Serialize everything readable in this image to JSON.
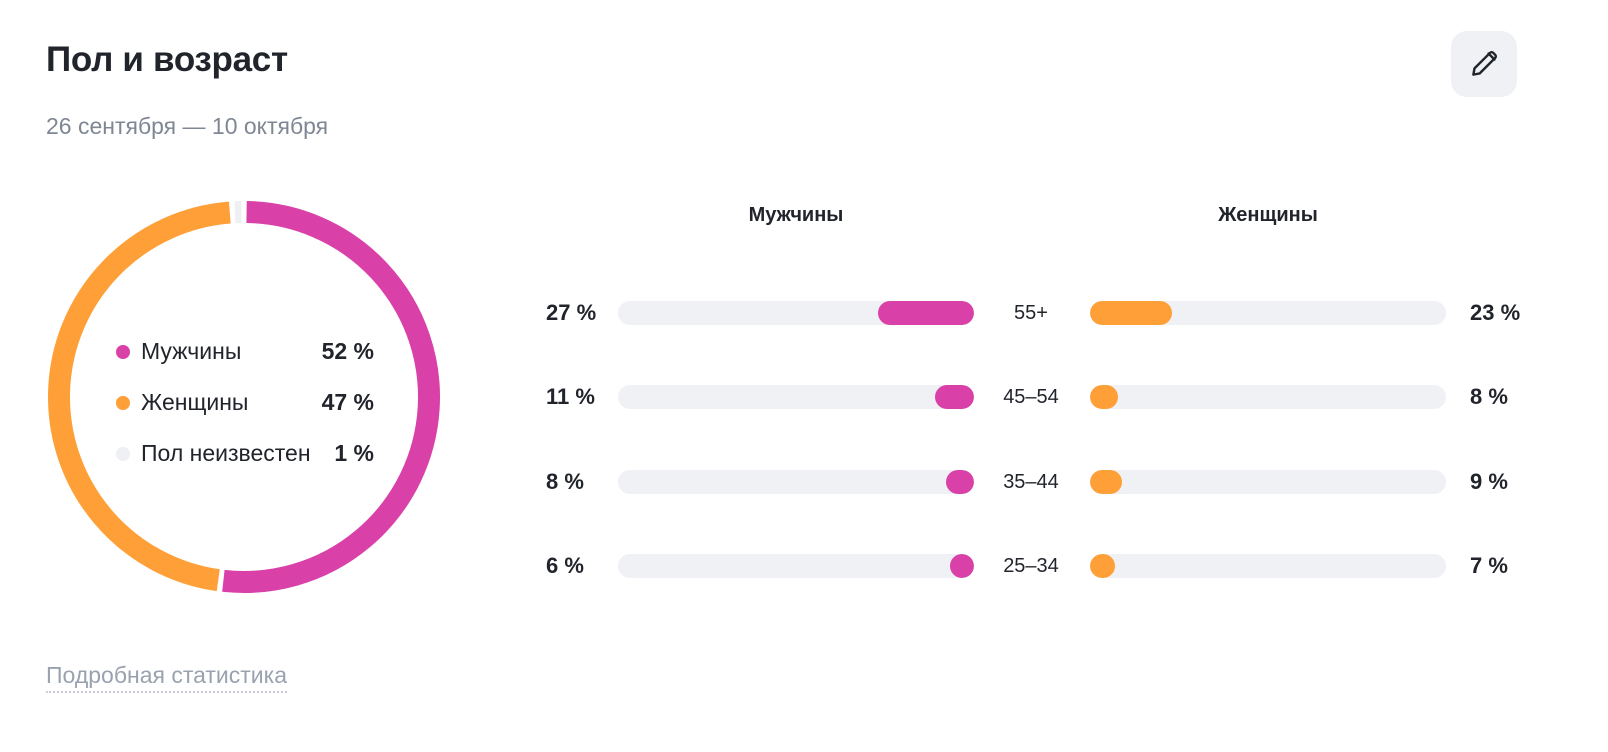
{
  "header": {
    "title": "Пол и возраст",
    "date_range": "26 сентября — 10 октября",
    "edit_icon": "pencil-icon"
  },
  "colors": {
    "male": "#d941a8",
    "female": "#ff9f38",
    "unknown": "#eef0f4",
    "track": "#eff1f4"
  },
  "gender": {
    "items": [
      {
        "key": "male",
        "label": "Мужчины",
        "value_text": "52 %",
        "value": 52
      },
      {
        "key": "female",
        "label": "Женщины",
        "value_text": "47 %",
        "value": 47
      },
      {
        "key": "unknown",
        "label": "Пол неизвестен",
        "value_text": "1 %",
        "value": 1
      }
    ]
  },
  "age": {
    "male_header": "Мужчины",
    "female_header": "Женщины",
    "rows": [
      {
        "range": "55+",
        "male_text": "27 %",
        "male": 27,
        "female_text": "23 %",
        "female": 23
      },
      {
        "range": "45–54",
        "male_text": "11 %",
        "male": 11,
        "female_text": "8 %",
        "female": 8
      },
      {
        "range": "35–44",
        "male_text": "8 %",
        "male": 8,
        "female_text": "9 %",
        "female": 9
      },
      {
        "range": "25–34",
        "male_text": "6 %",
        "male": 6,
        "female_text": "7 %",
        "female": 7
      }
    ]
  },
  "footer": {
    "link": "Подробная статистика"
  },
  "chart_data": [
    {
      "type": "pie",
      "categories": [
        "Мужчины",
        "Женщины",
        "Пол неизвестен"
      ],
      "values": [
        52,
        47,
        1
      ],
      "legend": "inside-center"
    },
    {
      "type": "bar",
      "categories": [
        "55+",
        "45–54",
        "35–44",
        "25–34"
      ],
      "series": [
        {
          "name": "Мужчины",
          "values": [
            27,
            11,
            8,
            6
          ]
        },
        {
          "name": "Женщины",
          "values": [
            23,
            8,
            9,
            7
          ]
        }
      ]
    }
  ]
}
